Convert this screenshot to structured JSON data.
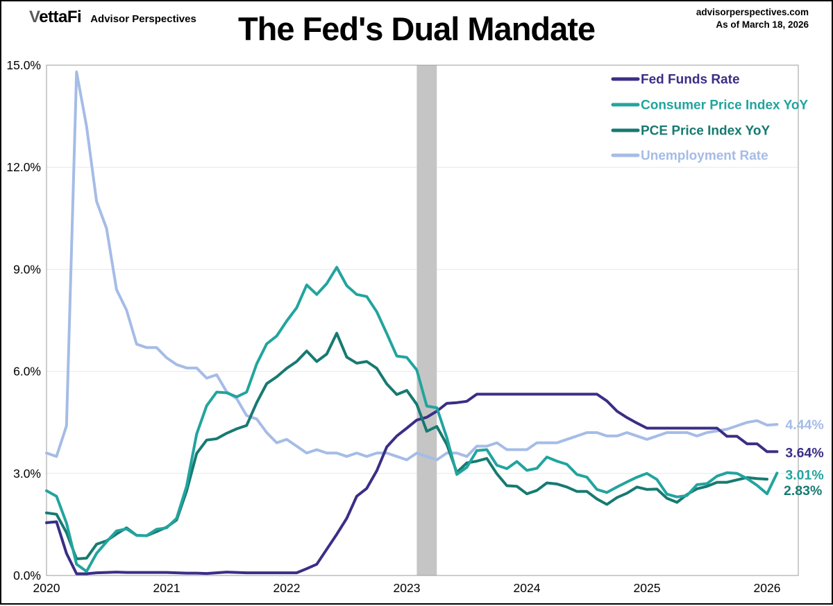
{
  "header": {
    "logo": {
      "v": "V",
      "rest": "ettaFi",
      "tagline": "Advisor Perspectives"
    },
    "source": {
      "line1": "advisorperspectives.com",
      "line2": "As of March 18, 2026"
    },
    "title": "The Fed's Dual Mandate"
  },
  "chart_data": {
    "type": "line",
    "title": "The Fed's Dual Mandate",
    "x_start_month": "2020-01",
    "x_frequency": "monthly",
    "x_tick_labels": [
      "2020",
      "2021",
      "2022",
      "2023",
      "2024",
      "2025",
      "2026"
    ],
    "y_ticks": [
      {
        "value": 0,
        "label": "0.0%"
      },
      {
        "value": 3,
        "label": "3.0%"
      },
      {
        "value": 6,
        "label": "6.0%"
      },
      {
        "value": 9,
        "label": "9.0%"
      },
      {
        "value": 12,
        "label": "12.0%"
      },
      {
        "value": 15,
        "label": "15.0%"
      }
    ],
    "ylim": [
      0,
      15
    ],
    "grid": "horizontal",
    "legend_position": "inside-top-right",
    "annotation_band": {
      "from_month": "2023-02",
      "to_month": "2023-04",
      "color": "#c5c5c5"
    },
    "series": [
      {
        "name": "Fed Funds Rate",
        "color": "#3a2e86",
        "end_label": "3.64%",
        "values": [
          1.55,
          1.58,
          0.65,
          0.05,
          0.05,
          0.08,
          0.09,
          0.1,
          0.09,
          0.09,
          0.09,
          0.09,
          0.09,
          0.08,
          0.07,
          0.07,
          0.06,
          0.08,
          0.1,
          0.09,
          0.08,
          0.08,
          0.08,
          0.08,
          0.08,
          0.08,
          0.2,
          0.33,
          0.77,
          1.21,
          1.68,
          2.33,
          2.56,
          3.08,
          3.78,
          4.1,
          4.33,
          4.57,
          4.65,
          4.83,
          5.06,
          5.08,
          5.12,
          5.33,
          5.33,
          5.33,
          5.33,
          5.33,
          5.33,
          5.33,
          5.33,
          5.33,
          5.33,
          5.33,
          5.33,
          5.33,
          5.13,
          4.83,
          4.64,
          4.48,
          4.33,
          4.33,
          4.33,
          4.33,
          4.33,
          4.33,
          4.33,
          4.33,
          4.09,
          4.09,
          3.87,
          3.87,
          3.64,
          3.64
        ]
      },
      {
        "name": "Consumer Price Index YoY",
        "color": "#22a49e",
        "end_label": "3.01%",
        "values": [
          2.49,
          2.33,
          1.54,
          0.33,
          0.12,
          0.65,
          0.99,
          1.31,
          1.37,
          1.18,
          1.17,
          1.36,
          1.4,
          1.68,
          2.62,
          4.16,
          4.99,
          5.39,
          5.37,
          5.25,
          5.39,
          6.22,
          6.81,
          7.04,
          7.48,
          7.87,
          8.54,
          8.26,
          8.58,
          9.06,
          8.52,
          8.26,
          8.2,
          7.75,
          7.11,
          6.45,
          6.41,
          6.04,
          4.98,
          4.93,
          4.05,
          2.97,
          3.18,
          3.67,
          3.7,
          3.24,
          3.14,
          3.35,
          3.09,
          3.15,
          3.48,
          3.36,
          3.27,
          2.97,
          2.89,
          2.53,
          2.44,
          2.6,
          2.75,
          2.89,
          3.0,
          2.82,
          2.39,
          2.31,
          2.35,
          2.67,
          2.7,
          2.92,
          3.02,
          3.0,
          2.85,
          2.65,
          2.4,
          3.01
        ]
      },
      {
        "name": "PCE Price Index YoY",
        "color": "#177a71",
        "end_label": "2.83%",
        "values": [
          1.84,
          1.8,
          1.26,
          0.49,
          0.51,
          0.92,
          1.02,
          1.22,
          1.4,
          1.18,
          1.17,
          1.29,
          1.42,
          1.63,
          2.48,
          3.59,
          3.98,
          4.02,
          4.18,
          4.31,
          4.41,
          5.08,
          5.64,
          5.84,
          6.09,
          6.29,
          6.6,
          6.29,
          6.51,
          7.12,
          6.42,
          6.24,
          6.29,
          6.09,
          5.63,
          5.32,
          5.44,
          5.03,
          4.24,
          4.38,
          3.85,
          3.03,
          3.31,
          3.36,
          3.44,
          2.99,
          2.64,
          2.62,
          2.4,
          2.5,
          2.72,
          2.69,
          2.6,
          2.47,
          2.47,
          2.25,
          2.09,
          2.29,
          2.42,
          2.6,
          2.53,
          2.54,
          2.27,
          2.15,
          2.38,
          2.55,
          2.62,
          2.74,
          2.74,
          2.81,
          2.88,
          2.85,
          2.83
        ]
      },
      {
        "name": "Unemployment Rate",
        "color": "#a5bce6",
        "end_label": "4.44%",
        "values": [
          3.6,
          3.5,
          4.4,
          14.8,
          13.2,
          11.0,
          10.2,
          8.4,
          7.8,
          6.8,
          6.7,
          6.7,
          6.4,
          6.2,
          6.1,
          6.1,
          5.8,
          5.9,
          5.4,
          5.2,
          4.7,
          4.6,
          4.2,
          3.9,
          4.0,
          3.8,
          3.6,
          3.7,
          3.6,
          3.6,
          3.5,
          3.6,
          3.5,
          3.6,
          3.6,
          3.5,
          3.4,
          3.6,
          3.5,
          3.4,
          3.6,
          3.6,
          3.5,
          3.8,
          3.8,
          3.9,
          3.7,
          3.7,
          3.7,
          3.9,
          3.9,
          3.9,
          4.0,
          4.1,
          4.2,
          4.2,
          4.1,
          4.1,
          4.2,
          4.1,
          4.0,
          4.1,
          4.2,
          4.2,
          4.2,
          4.1,
          4.2,
          4.25,
          4.3,
          4.4,
          4.5,
          4.55,
          4.42,
          4.44
        ]
      }
    ]
  }
}
